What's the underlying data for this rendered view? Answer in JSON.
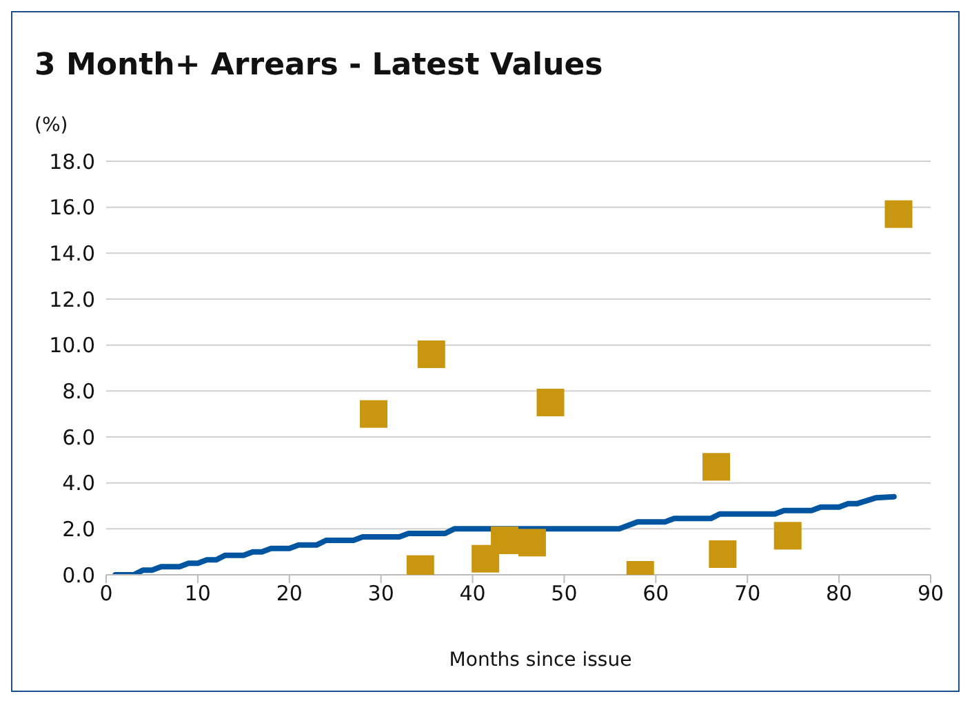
{
  "chart_data": {
    "type": "scatter",
    "title": "3 Month+ Arrears - Latest Values",
    "ylabel": "(%)",
    "xlabel": "Months since issue",
    "xlim": [
      0,
      90
    ],
    "xticks": [
      0,
      10,
      20,
      30,
      40,
      50,
      60,
      70,
      80,
      90
    ],
    "ylim": [
      0,
      18
    ],
    "yticks": [
      {
        "value": 0,
        "label": "0.0"
      },
      {
        "value": 2,
        "label": "2.0"
      },
      {
        "value": 4,
        "label": "4.0"
      },
      {
        "value": 6,
        "label": "6.0"
      },
      {
        "value": 8,
        "label": "8.0"
      },
      {
        "value": 10,
        "label": "10.0"
      },
      {
        "value": 12,
        "label": "12.0"
      },
      {
        "value": 14,
        "label": "14.0"
      },
      {
        "value": 16,
        "label": "16.0"
      },
      {
        "value": 18,
        "label": "18.0"
      }
    ],
    "grid": "y",
    "series": [
      {
        "type": "line",
        "color": "#0055a0",
        "marker": "none",
        "x": [
          1,
          3,
          4,
          5,
          6,
          8,
          9,
          10,
          11,
          12,
          13,
          15,
          16,
          17,
          18,
          20,
          21,
          23,
          24,
          27,
          28,
          32,
          33,
          37,
          38,
          56,
          58,
          61,
          62,
          66,
          67,
          73,
          74,
          77,
          78,
          80,
          81,
          82,
          84,
          86
        ],
        "values": [
          0,
          0,
          0.2,
          0.2,
          0.35,
          0.35,
          0.5,
          0.5,
          0.65,
          0.65,
          0.85,
          0.85,
          1.0,
          1.0,
          1.15,
          1.15,
          1.3,
          1.3,
          1.5,
          1.5,
          1.65,
          1.65,
          1.8,
          1.8,
          2.0,
          2.0,
          2.3,
          2.3,
          2.45,
          2.45,
          2.65,
          2.65,
          2.8,
          2.8,
          2.95,
          2.95,
          3.1,
          3.1,
          3.35,
          3.4
        ]
      },
      {
        "color": "#c8960f",
        "marker": "square",
        "x": [
          29.2,
          35.5,
          34.3,
          48.5,
          41.4,
          43.5,
          46.5,
          58.3,
          66.6,
          67.3,
          74.4,
          86.5
        ],
        "values": [
          7.0,
          9.6,
          0.25,
          7.5,
          0.7,
          1.5,
          1.4,
          0.0,
          4.7,
          0.9,
          1.7,
          15.7
        ]
      }
    ]
  }
}
